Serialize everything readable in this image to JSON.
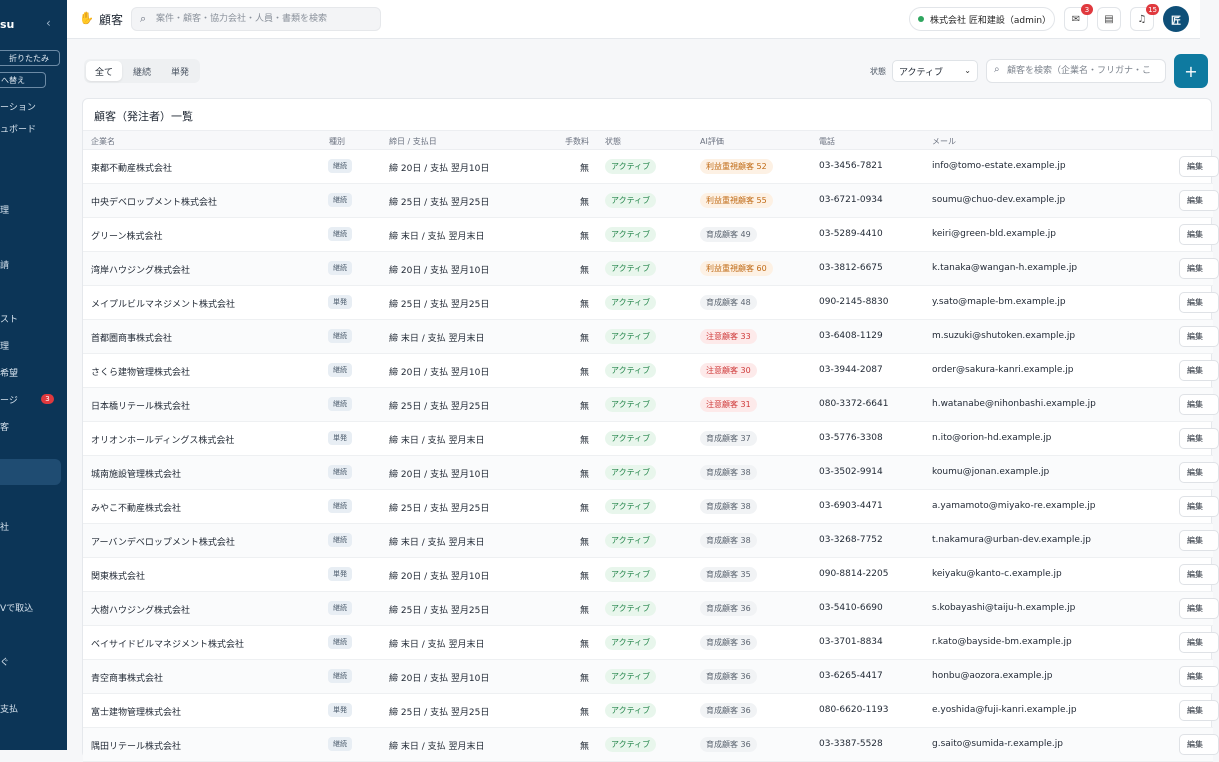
{
  "sidebar": {
    "brand": "su",
    "collapse_label": "折りたたみ",
    "switch_label": "へ替え",
    "items": [
      {
        "label": "ーション"
      },
      {
        "label": "ュボード"
      },
      {
        "label": "理"
      },
      {
        "label": "請"
      },
      {
        "label": "スト"
      },
      {
        "label": "理"
      },
      {
        "label": "希望"
      },
      {
        "label": "ージ"
      },
      {
        "label": "客"
      },
      {
        "label": "社"
      },
      {
        "label": "Vで取込"
      },
      {
        "label": "ぐ"
      },
      {
        "label": "支払"
      }
    ],
    "message_badge": "3"
  },
  "header": {
    "title": "顧客",
    "search_placeholder": "案件・顧客・協力会社・人員・書類を検索",
    "company": "株式会社 匠和建設（admin）",
    "mail_count": "3",
    "notif_count": "15",
    "avatar": "匠"
  },
  "toolbar": {
    "tabs": [
      "全て",
      "継続",
      "単発"
    ],
    "status_label": "状態",
    "status_value": "アクティブ",
    "search_placeholder": "顧客を検索（企業名・フリガナ・こ",
    "add_label": "+"
  },
  "table": {
    "title": "顧客（発注者）一覧",
    "columns": [
      "企業名",
      "種別",
      "締日 / 支払日",
      "手数料",
      "状態",
      "AI評価",
      "電話",
      "メール"
    ],
    "edit_label": "編集",
    "rows": [
      {
        "name": "東都不動産株式会社",
        "type": "継続",
        "cycle": "締 20日 / 支払 翌月10日",
        "fee": "無",
        "status": "アクティブ",
        "ai": "利益重視顧客 52",
        "ai_level": 0,
        "phone": "03-3456-7821",
        "email": "info@tomo-estate.example.jp"
      },
      {
        "name": "中央デベロップメント株式会社",
        "type": "継続",
        "cycle": "締 25日 / 支払 翌月25日",
        "fee": "無",
        "status": "アクティブ",
        "ai": "利益重視顧客 55",
        "ai_level": 0,
        "phone": "03-6721-0934",
        "email": "soumu@chuo-dev.example.jp"
      },
      {
        "name": "グリーン株式会社",
        "type": "継続",
        "cycle": "締 末日 / 支払 翌月末日",
        "fee": "無",
        "status": "アクティブ",
        "ai": "育成顧客 49",
        "ai_level": 1,
        "phone": "03-5289-4410",
        "email": "keiri@green-bld.example.jp"
      },
      {
        "name": "湾岸ハウジング株式会社",
        "type": "継続",
        "cycle": "締 20日 / 支払 翌月10日",
        "fee": "無",
        "status": "アクティブ",
        "ai": "利益重視顧客 60",
        "ai_level": 0,
        "phone": "03-3812-6675",
        "email": "k.tanaka@wangan-h.example.jp"
      },
      {
        "name": "メイプルビルマネジメント株式会社",
        "type": "単発",
        "cycle": "締 25日 / 支払 翌月25日",
        "fee": "無",
        "status": "アクティブ",
        "ai": "育成顧客 48",
        "ai_level": 1,
        "phone": "090-2145-8830",
        "email": "y.sato@maple-bm.example.jp"
      },
      {
        "name": "首都圏商事株式会社",
        "type": "継続",
        "cycle": "締 末日 / 支払 翌月末日",
        "fee": "無",
        "status": "アクティブ",
        "ai": "注意顧客 33",
        "ai_level": 2,
        "phone": "03-6408-1129",
        "email": "m.suzuki@shutoken.example.jp"
      },
      {
        "name": "さくら建物管理株式会社",
        "type": "継続",
        "cycle": "締 20日 / 支払 翌月10日",
        "fee": "無",
        "status": "アクティブ",
        "ai": "注意顧客 30",
        "ai_level": 2,
        "phone": "03-3944-2087",
        "email": "order@sakura-kanri.example.jp"
      },
      {
        "name": "日本橋リテール株式会社",
        "type": "継続",
        "cycle": "締 25日 / 支払 翌月25日",
        "fee": "無",
        "status": "アクティブ",
        "ai": "注意顧客 31",
        "ai_level": 2,
        "phone": "080-3372-6641",
        "email": "h.watanabe@nihonbashi.example.jp"
      },
      {
        "name": "オリオンホールディングス株式会社",
        "type": "単発",
        "cycle": "締 末日 / 支払 翌月末日",
        "fee": "無",
        "status": "アクティブ",
        "ai": "育成顧客 37",
        "ai_level": 1,
        "phone": "03-5776-3308",
        "email": "n.ito@orion-hd.example.jp"
      },
      {
        "name": "城南施設管理株式会社",
        "type": "継続",
        "cycle": "締 20日 / 支払 翌月10日",
        "fee": "無",
        "status": "アクティブ",
        "ai": "育成顧客 38",
        "ai_level": 1,
        "phone": "03-3502-9914",
        "email": "koumu@jonan.example.jp"
      },
      {
        "name": "みやこ不動産株式会社",
        "type": "継続",
        "cycle": "締 25日 / 支払 翌月25日",
        "fee": "無",
        "status": "アクティブ",
        "ai": "育成顧客 38",
        "ai_level": 1,
        "phone": "03-6903-4471",
        "email": "a.yamamoto@miyako-re.example.jp"
      },
      {
        "name": "アーバンデベロップメント株式会社",
        "type": "継続",
        "cycle": "締 末日 / 支払 翌月末日",
        "fee": "無",
        "status": "アクティブ",
        "ai": "育成顧客 38",
        "ai_level": 1,
        "phone": "03-3268-7752",
        "email": "t.nakamura@urban-dev.example.jp"
      },
      {
        "name": "関東株式会社",
        "type": "単発",
        "cycle": "締 20日 / 支払 翌月10日",
        "fee": "無",
        "status": "アクティブ",
        "ai": "育成顧客 35",
        "ai_level": 1,
        "phone": "090-8814-2205",
        "email": "keiyaku@kanto-c.example.jp"
      },
      {
        "name": "大樹ハウジング株式会社",
        "type": "継続",
        "cycle": "締 25日 / 支払 翌月25日",
        "fee": "無",
        "status": "アクティブ",
        "ai": "育成顧客 36",
        "ai_level": 1,
        "phone": "03-5410-6690",
        "email": "s.kobayashi@taiju-h.example.jp"
      },
      {
        "name": "ベイサイドビルマネジメント株式会社",
        "type": "継続",
        "cycle": "締 末日 / 支払 翌月末日",
        "fee": "無",
        "status": "アクティブ",
        "ai": "育成顧客 36",
        "ai_level": 1,
        "phone": "03-3701-8834",
        "email": "r.kato@bayside-bm.example.jp"
      },
      {
        "name": "青空商事株式会社",
        "type": "継続",
        "cycle": "締 20日 / 支払 翌月10日",
        "fee": "無",
        "status": "アクティブ",
        "ai": "育成顧客 36",
        "ai_level": 1,
        "phone": "03-6265-4417",
        "email": "honbu@aozora.example.jp"
      },
      {
        "name": "富士建物管理株式会社",
        "type": "単発",
        "cycle": "締 25日 / 支払 翌月25日",
        "fee": "無",
        "status": "アクティブ",
        "ai": "育成顧客 36",
        "ai_level": 1,
        "phone": "080-6620-1193",
        "email": "e.yoshida@fuji-kanri.example.jp"
      },
      {
        "name": "隅田リテール株式会社",
        "type": "継続",
        "cycle": "締 末日 / 支払 翌月末日",
        "fee": "無",
        "status": "アクティブ",
        "ai": "育成顧客 36",
        "ai_level": 1,
        "phone": "03-3387-5528",
        "email": "g.saito@sumida-r.example.jp"
      }
    ]
  }
}
